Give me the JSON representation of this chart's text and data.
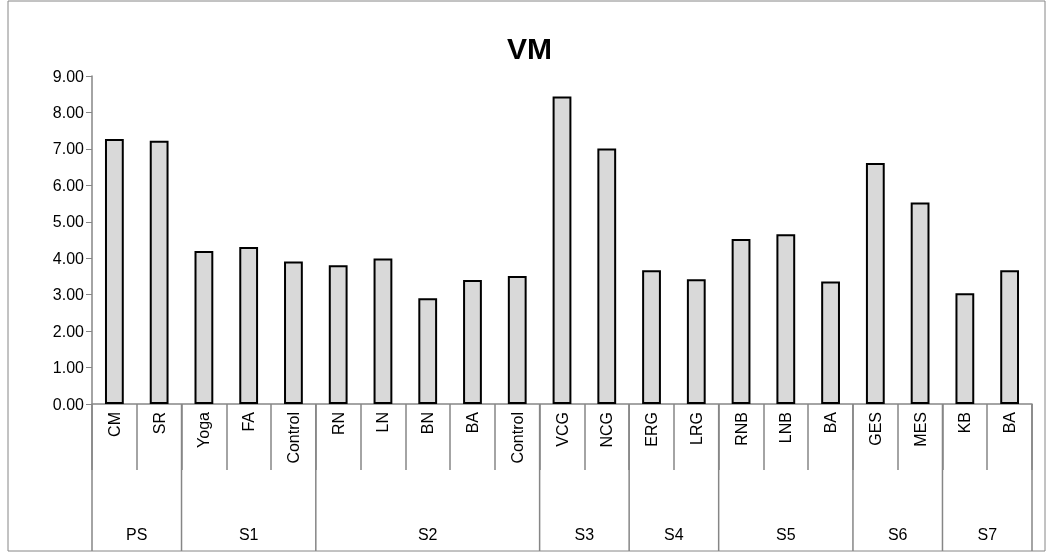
{
  "chart_data": {
    "type": "bar",
    "title": "VM",
    "categories": [
      "CM",
      "SR",
      "Yoga",
      "FA",
      "Control",
      "RN",
      "LN",
      "BN",
      "BA",
      "Control",
      "VCG",
      "NCG",
      "ERG",
      "LRG",
      "RNB",
      "LNB",
      "BA",
      "GES",
      "MES",
      "KB",
      "BA"
    ],
    "values": [
      7.27,
      7.22,
      4.2,
      4.31,
      3.91,
      3.81,
      3.99,
      2.9,
      3.4,
      3.51,
      8.44,
      7.01,
      3.67,
      3.42,
      4.53,
      4.66,
      3.36,
      6.61,
      5.53,
      3.04,
      3.67
    ],
    "color": "#d9d9d9",
    "ylim": [
      0,
      9
    ],
    "yticks": [
      {
        "value": 0,
        "label": "0.00"
      },
      {
        "value": 1,
        "label": "1.00"
      },
      {
        "value": 2,
        "label": "2.00"
      },
      {
        "value": 3,
        "label": "3.00"
      },
      {
        "value": 4,
        "label": "4.00"
      },
      {
        "value": 5,
        "label": "5.00"
      },
      {
        "value": 6,
        "label": "6.00"
      },
      {
        "value": 7,
        "label": "7.00"
      },
      {
        "value": 8,
        "label": "8.00"
      },
      {
        "value": 9,
        "label": "9.00"
      }
    ],
    "annotations": [
      "PS",
      "S1",
      "S2",
      "S3",
      "S4",
      "S5",
      "S6",
      "S7"
    ],
    "grid": false
  }
}
